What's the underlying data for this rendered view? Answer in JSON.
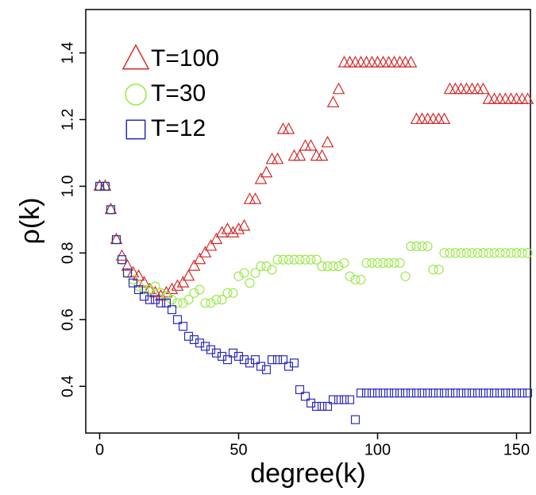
{
  "chart_data": {
    "type": "scatter",
    "xlabel": "degree(k)",
    "ylabel": "ρ(k)",
    "x": [
      0,
      2,
      4,
      6,
      8,
      10,
      12,
      14,
      16,
      18,
      20,
      22,
      24,
      26,
      28,
      30,
      32,
      34,
      36,
      38,
      40,
      42,
      44,
      46,
      48,
      50,
      52,
      54,
      56,
      58,
      60,
      62,
      64,
      66,
      68,
      70,
      72,
      74,
      76,
      78,
      80,
      82,
      84,
      86,
      88,
      90,
      92,
      94,
      96,
      98,
      100,
      102,
      104,
      106,
      108,
      110,
      112,
      114,
      116,
      118,
      120,
      122,
      124,
      126,
      128,
      130,
      132,
      134,
      136,
      138,
      140,
      142,
      144,
      146,
      148,
      150,
      152,
      154
    ],
    "series": [
      {
        "name": "T=100",
        "color": "#d42a2a",
        "marker": "triangle",
        "values": [
          1,
          1,
          0.93,
          0.84,
          0.79,
          0.76,
          0.74,
          0.73,
          0.71,
          0.69,
          0.68,
          0.67,
          0.68,
          0.69,
          0.7,
          0.71,
          0.73,
          0.76,
          0.78,
          0.8,
          0.82,
          0.84,
          0.86,
          0.87,
          0.86,
          0.87,
          0.88,
          0.96,
          0.96,
          1.02,
          1.04,
          1.08,
          1.08,
          1.17,
          1.17,
          1.09,
          1.09,
          1.12,
          1.12,
          1.09,
          1.09,
          1.13,
          1.25,
          1.29,
          1.37,
          1.37,
          1.37,
          1.37,
          1.37,
          1.37,
          1.37,
          1.37,
          1.37,
          1.37,
          1.37,
          1.37,
          1.37,
          1.2,
          1.2,
          1.2,
          1.2,
          1.2,
          1.2,
          1.29,
          1.29,
          1.29,
          1.29,
          1.29,
          1.29,
          1.29,
          1.26,
          1.26,
          1.26,
          1.26,
          1.26,
          1.26,
          1.26,
          1.26
        ]
      },
      {
        "name": "T=30",
        "color": "#9be84a",
        "marker": "circle",
        "values": [
          1,
          1,
          0.93,
          0.84,
          0.78,
          0.74,
          0.72,
          0.7,
          0.69,
          0.69,
          0.7,
          0.68,
          0.67,
          0.66,
          0.65,
          0.65,
          0.66,
          0.68,
          0.69,
          0.65,
          0.65,
          0.66,
          0.66,
          0.68,
          0.68,
          0.73,
          0.74,
          0.71,
          0.74,
          0.76,
          0.76,
          0.75,
          0.78,
          0.78,
          0.78,
          0.78,
          0.78,
          0.78,
          0.78,
          0.78,
          0.76,
          0.76,
          0.76,
          0.76,
          0.77,
          0.73,
          0.72,
          0.72,
          0.77,
          0.77,
          0.77,
          0.77,
          0.77,
          0.77,
          0.77,
          0.73,
          0.82,
          0.82,
          0.82,
          0.82,
          0.75,
          0.75,
          0.8,
          0.8,
          0.8,
          0.8,
          0.8,
          0.8,
          0.8,
          0.8,
          0.8,
          0.8,
          0.8,
          0.8,
          0.8,
          0.8,
          0.8,
          0.8
        ]
      },
      {
        "name": "T=12",
        "color": "#2a2ac0",
        "marker": "square",
        "values": [
          1,
          1,
          0.93,
          0.84,
          0.78,
          0.74,
          0.71,
          0.69,
          0.67,
          0.66,
          0.66,
          0.65,
          0.65,
          0.63,
          0.6,
          0.58,
          0.55,
          0.54,
          0.53,
          0.52,
          0.51,
          0.5,
          0.49,
          0.48,
          0.5,
          0.49,
          0.48,
          0.47,
          0.48,
          0.46,
          0.45,
          0.48,
          0.48,
          0.48,
          0.46,
          0.47,
          0.39,
          0.37,
          0.35,
          0.34,
          0.34,
          0.34,
          0.36,
          0.36,
          0.36,
          0.36,
          0.3,
          0.38,
          0.38,
          0.38,
          0.38,
          0.38,
          0.38,
          0.38,
          0.38,
          0.38,
          0.38,
          0.38,
          0.38,
          0.38,
          0.38,
          0.38,
          0.38,
          0.38,
          0.38,
          0.38,
          0.38,
          0.38,
          0.38,
          0.38,
          0.38,
          0.38,
          0.38,
          0.38,
          0.38,
          0.38,
          0.38,
          0.38
        ]
      }
    ],
    "xlim": [
      -5,
      155
    ],
    "xticks": [
      0,
      50,
      100,
      150
    ],
    "ylim": [
      0.26,
      1.53
    ],
    "yticks": [
      0.4,
      0.6,
      0.8,
      {
        "value": 1,
        "label": "1.0"
      },
      1.2,
      1.4
    ],
    "legend": "top-left"
  }
}
